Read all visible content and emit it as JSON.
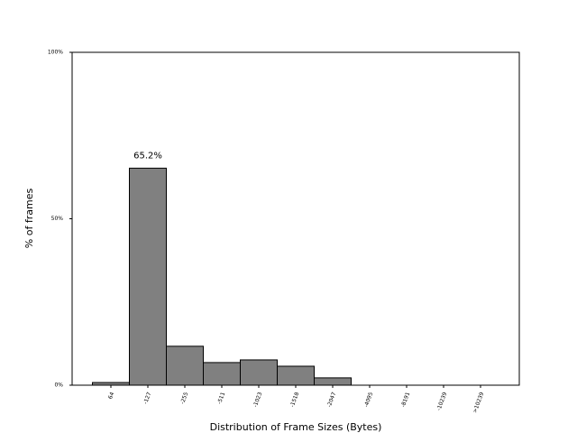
{
  "chart_data": {
    "type": "bar",
    "categories": [
      "64",
      "-127",
      "-255",
      "-511",
      "-1023",
      "-1518",
      "-2047",
      "-4095",
      "-8191",
      "-10239",
      ">10239"
    ],
    "values": [
      0.8,
      65.2,
      11.7,
      6.8,
      7.6,
      5.7,
      2.2,
      0,
      0,
      0,
      0
    ],
    "value_labels": [
      null,
      "65.2%",
      null,
      null,
      null,
      null,
      null,
      null,
      null,
      null,
      null
    ],
    "color": "#808080",
    "edgecolor": "#000000",
    "xlabel": "Distribution of Frame Sizes (Bytes)",
    "ylabel": "% of frames",
    "ylim": [
      0,
      100
    ],
    "yticks": [
      {
        "value": 0,
        "label": "0%"
      },
      {
        "value": 50,
        "label": "50%"
      },
      {
        "value": 100,
        "label": "100%"
      }
    ]
  }
}
